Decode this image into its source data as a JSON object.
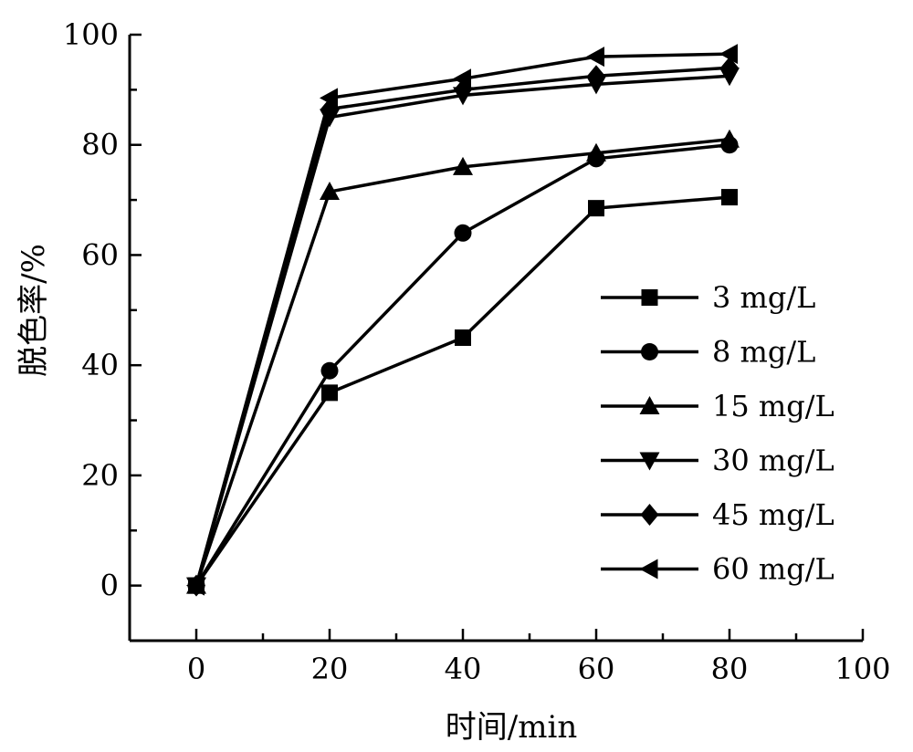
{
  "chart_data": {
    "type": "line",
    "xlabel": "时间/min",
    "ylabel": "脱色率/%",
    "xlim": [
      -10,
      100
    ],
    "ylim": [
      -10,
      100
    ],
    "xticks": [
      0,
      20,
      40,
      60,
      80,
      100
    ],
    "yticks": [
      0,
      20,
      40,
      60,
      80,
      100
    ],
    "x": [
      0,
      20,
      40,
      60,
      80
    ],
    "grid": false,
    "legend_position": "right",
    "series": [
      {
        "name": "3 mg/L",
        "marker": "square",
        "values": [
          0,
          35,
          45,
          68.5,
          70.5
        ]
      },
      {
        "name": "8 mg/L",
        "marker": "circle",
        "values": [
          0,
          39,
          64,
          77.5,
          80
        ]
      },
      {
        "name": "15 mg/L",
        "marker": "triangle-up",
        "values": [
          0,
          71.5,
          76,
          78.5,
          81
        ]
      },
      {
        "name": "30 mg/L",
        "marker": "triangle-down",
        "values": [
          0,
          85,
          89,
          91,
          92.5
        ]
      },
      {
        "name": "45 mg/L",
        "marker": "diamond",
        "values": [
          0,
          86.5,
          90,
          92.5,
          94
        ]
      },
      {
        "name": "60 mg/L",
        "marker": "triangle-left",
        "values": [
          0,
          88.5,
          92,
          96,
          96.5
        ]
      }
    ]
  }
}
